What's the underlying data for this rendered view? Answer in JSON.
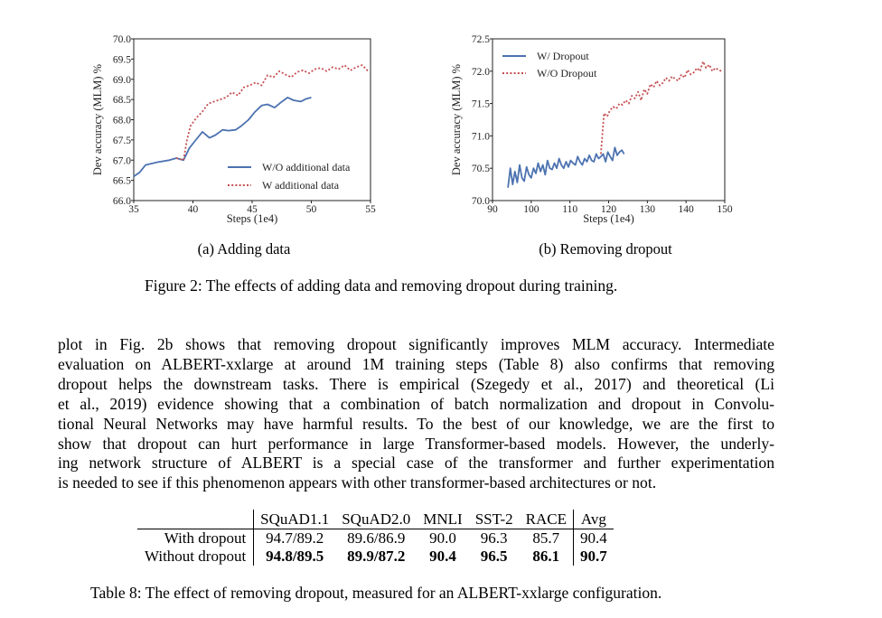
{
  "figure": {
    "caption": "Figure 2: The effects of adding data and removing dropout during training.",
    "subcaptions": [
      "(a) Adding data",
      "(b) Removing dropout"
    ]
  },
  "chart_data": [
    {
      "type": "line",
      "xlabel": "Steps (1e4)",
      "ylabel": "Dev accuracy (MLM) %",
      "xlim": [
        35,
        55
      ],
      "ylim": [
        66.0,
        70.0
      ],
      "x_ticks": [
        "35",
        "40",
        "45",
        "50",
        "55"
      ],
      "y_ticks": [
        "66.0",
        "66.5",
        "67.0",
        "67.5",
        "68.0",
        "68.5",
        "69.0",
        "69.5",
        "70.0"
      ],
      "legend_position": "lower-right",
      "grid": false,
      "series": [
        {
          "name": "W/O additional data",
          "style": "solid",
          "color": "#4c72b0",
          "x": [
            35,
            35.5,
            36,
            37,
            38,
            38.6,
            39.2,
            39.7,
            40.3,
            40.8,
            41.4,
            41.9,
            42.5,
            43,
            43.6,
            44.1,
            44.7,
            45.2,
            45.8,
            46.3,
            46.9,
            47.4,
            48,
            48.5,
            49.1,
            49.6,
            50
          ],
          "y": [
            66.6,
            66.7,
            66.88,
            66.95,
            67.0,
            67.05,
            67.0,
            67.3,
            67.52,
            67.7,
            67.55,
            67.62,
            67.75,
            67.73,
            67.75,
            67.85,
            68.0,
            68.18,
            68.35,
            68.38,
            68.3,
            68.42,
            68.55,
            68.48,
            68.45,
            68.52,
            68.55
          ]
        },
        {
          "name": "W additional data",
          "style": "dotted",
          "color": "#c44e52",
          "x": [
            38.6,
            39.2,
            39.5,
            39.8,
            40.3,
            40.8,
            41.3,
            41.8,
            42.3,
            42.8,
            43.3,
            43.8,
            44.3,
            44.8,
            45.3,
            45.8,
            46.3,
            46.8,
            47.3,
            47.8,
            48.3,
            48.8,
            49.3,
            49.8,
            50.3,
            50.8,
            51.3,
            51.8,
            52.3,
            52.8,
            53.3,
            53.8,
            54.3,
            54.8
          ],
          "y": [
            67.05,
            67.0,
            67.5,
            67.85,
            68.05,
            68.2,
            68.4,
            68.45,
            68.5,
            68.55,
            68.68,
            68.6,
            68.8,
            68.85,
            68.92,
            68.85,
            69.1,
            69.05,
            69.2,
            69.12,
            69.05,
            69.18,
            69.22,
            69.15,
            69.25,
            69.28,
            69.2,
            69.3,
            69.25,
            69.35,
            69.22,
            69.3,
            69.35,
            69.2
          ]
        }
      ]
    },
    {
      "type": "line",
      "xlabel": "Steps (1e4)",
      "ylabel": "Dev accuracy (MLM) %",
      "xlim": [
        90,
        150
      ],
      "ylim": [
        70.0,
        72.5
      ],
      "x_ticks": [
        "90",
        "100",
        "110",
        "120",
        "130",
        "140",
        "150"
      ],
      "y_ticks": [
        "70.0",
        "70.5",
        "71.0",
        "71.5",
        "72.0",
        "72.5"
      ],
      "legend_position": "upper-left",
      "grid": false,
      "series": [
        {
          "name": "W/ Dropout",
          "style": "solid",
          "color": "#4c72b0",
          "x": [
            94,
            94.6,
            95.2,
            95.8,
            96.4,
            97,
            97.6,
            98.2,
            98.8,
            99.4,
            100,
            100.6,
            101.2,
            101.8,
            102.4,
            103,
            103.6,
            104.2,
            104.8,
            105.4,
            106,
            106.6,
            107.2,
            107.8,
            108.4,
            109,
            109.6,
            110.2,
            110.8,
            111.4,
            112,
            112.6,
            113.2,
            113.8,
            114.4,
            115,
            115.6,
            116.2,
            116.8,
            117.4,
            118,
            118.6,
            119.2,
            119.8,
            120.4,
            121,
            121.6,
            122.2,
            122.8,
            123.4,
            124
          ],
          "y": [
            70.2,
            70.5,
            70.25,
            70.45,
            70.28,
            70.55,
            70.35,
            70.3,
            70.52,
            70.4,
            70.35,
            70.5,
            70.42,
            70.58,
            70.45,
            70.55,
            70.4,
            70.62,
            70.5,
            70.48,
            70.58,
            70.5,
            70.65,
            70.55,
            70.5,
            70.6,
            70.52,
            70.62,
            70.58,
            70.55,
            70.68,
            70.6,
            70.55,
            70.65,
            70.6,
            70.7,
            70.62,
            70.6,
            70.72,
            70.65,
            70.68,
            70.72,
            70.6,
            70.75,
            70.68,
            70.62,
            70.82,
            70.7,
            70.75,
            70.78,
            70.72
          ]
        },
        {
          "name": "W/O Dropout",
          "style": "dotted",
          "color": "#c44e52",
          "x": [
            118,
            118.8,
            119.6,
            120.4,
            121.2,
            122,
            122.8,
            123.6,
            124.4,
            125.2,
            126,
            126.8,
            127.6,
            128.4,
            129.2,
            130,
            130.8,
            131.6,
            132.4,
            133.2,
            134,
            134.8,
            135.6,
            136.4,
            137.2,
            138,
            138.8,
            139.6,
            140.4,
            141.2,
            142,
            142.8,
            143.6,
            144.4,
            145.2,
            146,
            146.8,
            147.6,
            148.4,
            149.2
          ],
          "y": [
            70.72,
            71.35,
            71.3,
            71.4,
            71.45,
            71.42,
            71.5,
            71.48,
            71.55,
            71.5,
            71.62,
            71.58,
            71.68,
            71.55,
            71.72,
            71.65,
            71.8,
            71.75,
            71.85,
            71.78,
            71.82,
            71.9,
            71.85,
            71.92,
            71.88,
            71.85,
            71.95,
            71.9,
            72.02,
            71.95,
            71.98,
            72.05,
            72.0,
            72.15,
            72.05,
            72.1,
            72.0,
            72.05,
            72.02,
            72.0
          ]
        }
      ]
    }
  ],
  "paragraph_lines": [
    "plot in Fig. 2b shows that removing dropout significantly improves MLM accuracy. Intermediate",
    "evaluation on ALBERT-xxlarge at around 1M training steps (Table 8) also confirms that removing",
    "dropout helps the downstream tasks. There is empirical (Szegedy et al., 2017) and theoretical (Li",
    "et al., 2019) evidence showing that a combination of batch normalization and dropout in Convolu-",
    "tional Neural Networks may have harmful results. To the best of our knowledge, we are the first to",
    "show that dropout can hurt performance in large Transformer-based models. However, the underly-",
    "ing network structure of ALBERT is a special case of the transformer and further experimentation",
    "is needed to see if this phenomenon appears with other transformer-based architectures or not."
  ],
  "table": {
    "headers": [
      "SQuAD1.1",
      "SQuAD2.0",
      "MNLI",
      "SST-2",
      "RACE",
      "Avg"
    ],
    "rows": [
      {
        "label": "With dropout",
        "values": [
          "94.7/89.2",
          "89.6/86.9",
          "90.0",
          "96.3",
          "85.7",
          "90.4"
        ]
      },
      {
        "label": "Without dropout",
        "values": [
          "94.8/89.5",
          "89.9/87.2",
          "90.4",
          "96.5",
          "86.1",
          "90.7"
        ]
      }
    ],
    "caption": "Table 8: The effect of removing dropout, measured for an ALBERT-xxlarge configuration."
  }
}
